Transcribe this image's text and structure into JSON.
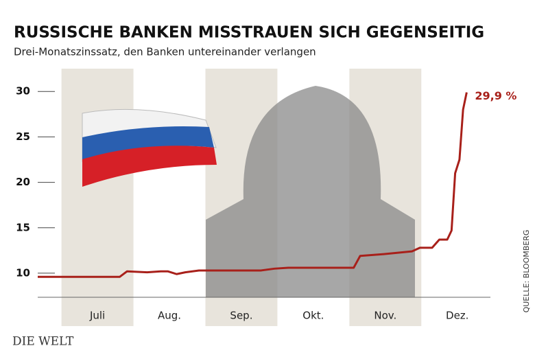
{
  "chart_data": {
    "type": "line",
    "title": "RUSSISCHE BANKEN MISSTRAUEN SICH GEGENSEITIG",
    "subtitle": "Drei-Monatszinssatz, den Banken untereinander verlangen",
    "source": "QUELLE: BLOOMBERG",
    "publisher": "DIE WELT",
    "annotation": "29,9 %",
    "x": [
      -0.33,
      0,
      0.81,
      0.91,
      1.19,
      1.38,
      1.48,
      1.6,
      1.72,
      1.91,
      2.77,
      2.96,
      3.15,
      4.06,
      4.15,
      4.48,
      4.87,
      4.98,
      5.15,
      5.25,
      5.36,
      5.42,
      5.47,
      5.53,
      5.58,
      5.63
    ],
    "series": [
      {
        "color": "#a8201a",
        "values": [
          9.6,
          9.6,
          9.6,
          10.2,
          10.1,
          10.2,
          10.2,
          9.9,
          10.1,
          10.3,
          10.3,
          10.5,
          10.6,
          10.6,
          11.9,
          12.1,
          12.4,
          12.8,
          12.8,
          13.7,
          13.7,
          14.7,
          21,
          22.5,
          28,
          29.9
        ]
      }
    ],
    "xlim": [
      -0.33,
      5.96
    ],
    "xticks": [
      {
        "value": 0.5,
        "label": "Juli"
      },
      {
        "value": 1.5,
        "label": "Aug."
      },
      {
        "value": 2.5,
        "label": "Sep."
      },
      {
        "value": 3.5,
        "label": "Okt."
      },
      {
        "value": 4.5,
        "label": "Nov."
      },
      {
        "value": 5.5,
        "label": "Dez."
      }
    ],
    "ylim": [
      7.35,
      31
    ],
    "yticks": [
      10,
      15,
      20,
      25,
      30
    ],
    "band_color": "#e8e4dc"
  }
}
